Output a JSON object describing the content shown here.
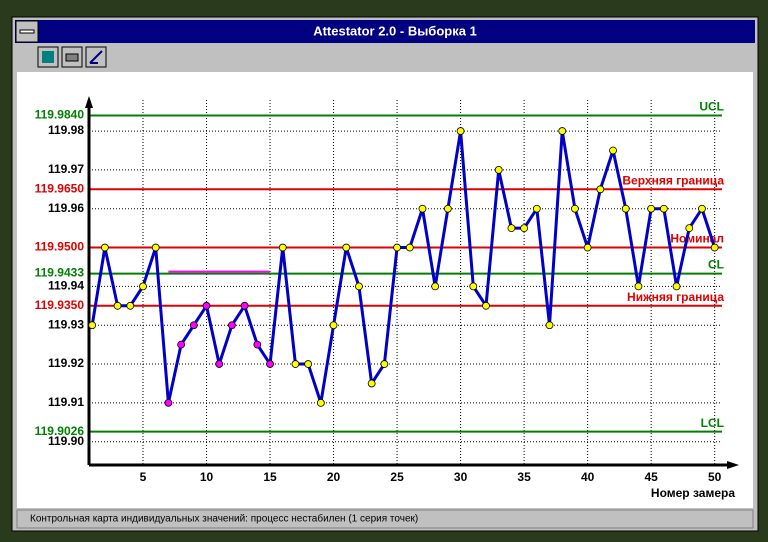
{
  "window": {
    "title": "Attestator 2.0  -  Выборка 1",
    "status": "Контрольная карта индивидуальных значений: процесс нестабилен (1 серия точек)"
  },
  "chart_data": {
    "type": "line",
    "x_label": "Номер замера",
    "x": [
      1,
      2,
      3,
      4,
      5,
      6,
      7,
      8,
      9,
      10,
      11,
      12,
      13,
      14,
      15,
      16,
      17,
      18,
      19,
      20,
      21,
      22,
      23,
      24,
      25,
      26,
      27,
      28,
      29,
      30,
      31,
      32,
      33,
      34,
      35,
      36,
      37,
      38,
      39,
      40,
      41,
      42,
      43,
      44,
      45,
      46,
      47,
      48,
      49,
      50
    ],
    "values": [
      119.93,
      119.95,
      119.935,
      119.935,
      119.94,
      119.95,
      119.91,
      119.925,
      119.93,
      119.935,
      119.92,
      119.93,
      119.935,
      119.925,
      119.92,
      119.95,
      119.92,
      119.92,
      119.91,
      119.93,
      119.95,
      119.94,
      119.915,
      119.92,
      119.95,
      119.95,
      119.96,
      119.94,
      119.96,
      119.98,
      119.94,
      119.935,
      119.97,
      119.955,
      119.955,
      119.96,
      119.93,
      119.98,
      119.96,
      119.95,
      119.965,
      119.975,
      119.96,
      119.94,
      119.96,
      119.96,
      119.94,
      119.955,
      119.96,
      119.95
    ],
    "color": "#0000c8",
    "point_colors": [
      "#ffff00",
      "#ffff00",
      "#ffff00",
      "#ffff00",
      "#ffff00",
      "#ffff00",
      "#ff00ff",
      "#ff00ff",
      "#ff00ff",
      "#ff00ff",
      "#ff00ff",
      "#ff00ff",
      "#ff00ff",
      "#ff00ff",
      "#ff00ff",
      "#ffff00",
      "#ffff00",
      "#ffff00",
      "#ffff00",
      "#ffff00",
      "#ffff00",
      "#ffff00",
      "#ffff00",
      "#ffff00",
      "#ffff00",
      "#ffff00",
      "#ffff00",
      "#ffff00",
      "#ffff00",
      "#ffff00",
      "#ffff00",
      "#ffff00",
      "#ffff00",
      "#ffff00",
      "#ffff00",
      "#ffff00",
      "#ffff00",
      "#ffff00",
      "#ffff00",
      "#ffff00",
      "#ffff00",
      "#ffff00",
      "#ffff00",
      "#ffff00",
      "#ffff00",
      "#ffff00",
      "#ffff00",
      "#ffff00",
      "#ffff00",
      "#ffff00"
    ],
    "xlim": [
      0.75,
      51.6
    ],
    "xticks": [
      5,
      10,
      15,
      20,
      25,
      30,
      35,
      40,
      45,
      50
    ],
    "ylim": [
      119.894,
      119.988
    ],
    "yticks": [
      119.98,
      119.97,
      119.96,
      119.94,
      119.93,
      119.92,
      119.91,
      {
        "value": 119.9,
        "label": "119.90"
      }
    ],
    "grid": true,
    "reference_lines": [
      {
        "name": "UCL",
        "value": 119.984,
        "label": "119.9840",
        "color": "#008000"
      },
      {
        "name": "Верхняя граница",
        "value": 119.965,
        "label": "119.9650",
        "color": "#e00000"
      },
      {
        "name": "Номинал",
        "value": 119.95,
        "label": "119.9500",
        "color": "#e00000"
      },
      {
        "name": "CL",
        "value": 119.9433,
        "label": "119.9433",
        "color": "#008000"
      },
      {
        "name": "Нижняя граница",
        "value": 119.935,
        "label": "119.9350",
        "color": "#e00000"
      },
      {
        "name": "LCL",
        "value": 119.9026,
        "label": "119.9026",
        "color": "#008000"
      }
    ]
  }
}
